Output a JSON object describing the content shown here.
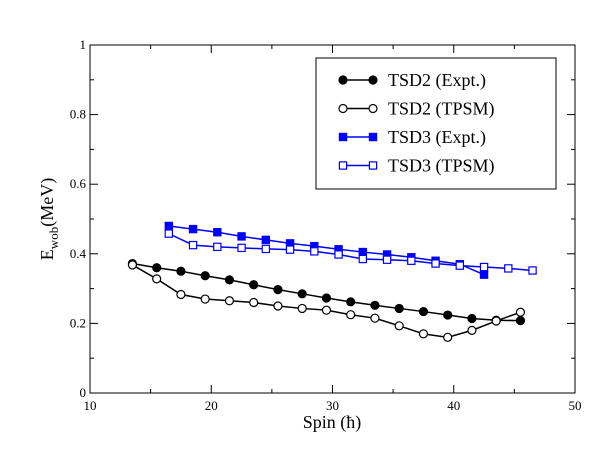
{
  "chart_data": {
    "type": "line",
    "title": "",
    "xlabel": "Spin (ħ)",
    "ylabel_main": "E",
    "ylabel_sub": "wob",
    "ylabel_unit": "(MeV)",
    "xlim": [
      10,
      50
    ],
    "ylim": [
      0,
      1
    ],
    "x_ticks": [
      10,
      20,
      30,
      40,
      50
    ],
    "y_ticks": [
      0,
      0.2,
      0.4,
      0.6,
      0.8,
      1
    ],
    "y_tick_labels": [
      "0",
      "0.2",
      "0.4",
      "0.6",
      "0.8",
      "1"
    ],
    "legend_position": "top-right",
    "grid": false,
    "series": [
      {
        "name": "TSD2 (Expt.)",
        "color": "#000000",
        "marker": "circle",
        "filled": true,
        "x": [
          13.5,
          15.5,
          17.5,
          19.5,
          21.5,
          23.5,
          25.5,
          27.5,
          29.5,
          31.5,
          33.5,
          35.5,
          37.5,
          39.5,
          41.5,
          43.5,
          45.5
        ],
        "y": [
          0.372,
          0.36,
          0.35,
          0.337,
          0.325,
          0.311,
          0.297,
          0.285,
          0.273,
          0.262,
          0.252,
          0.243,
          0.234,
          0.224,
          0.214,
          0.209,
          0.208
        ]
      },
      {
        "name": "TSD2 (TPSM)",
        "color": "#000000",
        "marker": "circle",
        "filled": false,
        "x": [
          13.5,
          15.5,
          17.5,
          19.5,
          21.5,
          23.5,
          25.5,
          27.5,
          29.5,
          31.5,
          33.5,
          35.5,
          37.5,
          39.5,
          41.5,
          43.5,
          45.5
        ],
        "y": [
          0.368,
          0.328,
          0.283,
          0.27,
          0.265,
          0.26,
          0.25,
          0.243,
          0.238,
          0.225,
          0.215,
          0.193,
          0.17,
          0.16,
          0.18,
          0.207,
          0.232
        ]
      },
      {
        "name": "TSD3 (Expt.)",
        "color": "#0000ff",
        "marker": "square",
        "filled": true,
        "x": [
          16.5,
          18.5,
          20.5,
          22.5,
          24.5,
          26.5,
          28.5,
          30.5,
          32.5,
          34.5,
          36.5,
          38.5,
          40.5,
          42.5
        ],
        "y": [
          0.48,
          0.471,
          0.462,
          0.45,
          0.44,
          0.43,
          0.422,
          0.413,
          0.405,
          0.398,
          0.39,
          0.38,
          0.37,
          0.34
        ]
      },
      {
        "name": "TSD3 (TPSM)",
        "color": "#0000ff",
        "marker": "square",
        "filled": false,
        "x": [
          16.5,
          18.5,
          20.5,
          22.5,
          24.5,
          26.5,
          28.5,
          30.5,
          32.5,
          34.5,
          36.5,
          38.5,
          40.5,
          42.5,
          44.5,
          46.5
        ],
        "y": [
          0.458,
          0.425,
          0.42,
          0.417,
          0.414,
          0.412,
          0.407,
          0.398,
          0.385,
          0.383,
          0.38,
          0.372,
          0.366,
          0.362,
          0.358,
          0.352
        ]
      }
    ]
  }
}
